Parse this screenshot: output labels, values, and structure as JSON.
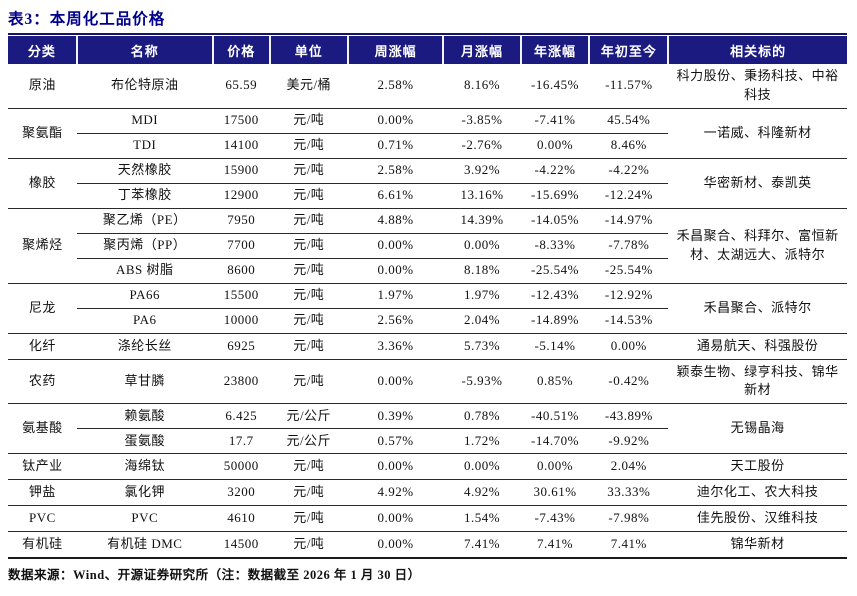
{
  "title": "表3：本周化工品价格",
  "source_note": "数据来源：Wind、开源证券研究所（注：数据截至 2026 年 1 月 30 日）",
  "colors": {
    "header_background_navy": "#1a1a80",
    "title_navy": "#00008b",
    "header_text": "#ffffff",
    "body_text": "#111111",
    "rule_navy": "#14146e"
  },
  "table": {
    "columns": [
      "分类",
      "名称",
      "价格",
      "单位",
      "周涨幅",
      "月涨幅",
      "年涨幅",
      "年初至今",
      "相关标的"
    ],
    "groups": [
      {
        "category": "原油",
        "related": "科力股份、秉扬科技、中裕科技",
        "rows": [
          {
            "name": "布伦特原油",
            "price": "65.59",
            "unit": "美元/桶",
            "week": "2.58%",
            "month": "8.16%",
            "year": "-16.45%",
            "ytd": "-11.57%"
          }
        ]
      },
      {
        "category": "聚氨酯",
        "related": "一诺威、科隆新材",
        "rows": [
          {
            "name": "MDI",
            "price": "17500",
            "unit": "元/吨",
            "week": "0.00%",
            "month": "-3.85%",
            "year": "-7.41%",
            "ytd": "45.54%"
          },
          {
            "name": "TDI",
            "price": "14100",
            "unit": "元/吨",
            "week": "0.71%",
            "month": "-2.76%",
            "year": "0.00%",
            "ytd": "8.46%"
          }
        ]
      },
      {
        "category": "橡胶",
        "related": "华密新材、泰凯英",
        "rows": [
          {
            "name": "天然橡胶",
            "price": "15900",
            "unit": "元/吨",
            "week": "2.58%",
            "month": "3.92%",
            "year": "-4.22%",
            "ytd": "-4.22%"
          },
          {
            "name": "丁苯橡胶",
            "price": "12900",
            "unit": "元/吨",
            "week": "6.61%",
            "month": "13.16%",
            "year": "-15.69%",
            "ytd": "-12.24%"
          }
        ]
      },
      {
        "category": "聚烯烃",
        "related": "禾昌聚合、科拜尔、富恒新材、太湖远大、派特尔",
        "rows": [
          {
            "name": "聚乙烯（PE）",
            "price": "7950",
            "unit": "元/吨",
            "week": "4.88%",
            "month": "14.39%",
            "year": "-14.05%",
            "ytd": "-14.97%"
          },
          {
            "name": "聚丙烯（PP）",
            "price": "7700",
            "unit": "元/吨",
            "week": "0.00%",
            "month": "0.00%",
            "year": "-8.33%",
            "ytd": "-7.78%"
          },
          {
            "name": "ABS 树脂",
            "price": "8600",
            "unit": "元/吨",
            "week": "0.00%",
            "month": "8.18%",
            "year": "-25.54%",
            "ytd": "-25.54%"
          }
        ]
      },
      {
        "category": "尼龙",
        "related": "禾昌聚合、派特尔",
        "rows": [
          {
            "name": "PA66",
            "price": "15500",
            "unit": "元/吨",
            "week": "1.97%",
            "month": "1.97%",
            "year": "-12.43%",
            "ytd": "-12.92%"
          },
          {
            "name": "PA6",
            "price": "10000",
            "unit": "元/吨",
            "week": "2.56%",
            "month": "2.04%",
            "year": "-14.89%",
            "ytd": "-14.53%"
          }
        ]
      },
      {
        "category": "化纤",
        "related": "通易航天、科强股份",
        "rows": [
          {
            "name": "涤纶长丝",
            "price": "6925",
            "unit": "元/吨",
            "week": "3.36%",
            "month": "5.73%",
            "year": "-5.14%",
            "ytd": "0.00%"
          }
        ]
      },
      {
        "category": "农药",
        "related": "颖泰生物、绿亨科技、锦华新材",
        "rows": [
          {
            "name": "草甘膦",
            "price": "23800",
            "unit": "元/吨",
            "week": "0.00%",
            "month": "-5.93%",
            "year": "0.85%",
            "ytd": "-0.42%"
          }
        ]
      },
      {
        "category": "氨基酸",
        "related": "无锡晶海",
        "rows": [
          {
            "name": "赖氨酸",
            "price": "6.425",
            "unit": "元/公斤",
            "week": "0.39%",
            "month": "0.78%",
            "year": "-40.51%",
            "ytd": "-43.89%"
          },
          {
            "name": "蛋氨酸",
            "price": "17.7",
            "unit": "元/公斤",
            "week": "0.57%",
            "month": "1.72%",
            "year": "-14.70%",
            "ytd": "-9.92%"
          }
        ]
      },
      {
        "category": "钛产业",
        "related": "天工股份",
        "rows": [
          {
            "name": "海绵钛",
            "price": "50000",
            "unit": "元/吨",
            "week": "0.00%",
            "month": "0.00%",
            "year": "0.00%",
            "ytd": "2.04%"
          }
        ]
      },
      {
        "category": "钾盐",
        "related": "迪尔化工、农大科技",
        "rows": [
          {
            "name": "氯化钾",
            "price": "3200",
            "unit": "元/吨",
            "week": "4.92%",
            "month": "4.92%",
            "year": "30.61%",
            "ytd": "33.33%"
          }
        ]
      },
      {
        "category": "PVC",
        "related": "佳先股份、汉维科技",
        "rows": [
          {
            "name": "PVC",
            "price": "4610",
            "unit": "元/吨",
            "week": "0.00%",
            "month": "1.54%",
            "year": "-7.43%",
            "ytd": "-7.98%"
          }
        ]
      },
      {
        "category": "有机硅",
        "related": "锦华新材",
        "rows": [
          {
            "name": "有机硅 DMC",
            "price": "14500",
            "unit": "元/吨",
            "week": "0.00%",
            "month": "7.41%",
            "year": "7.41%",
            "ytd": "7.41%"
          }
        ]
      }
    ]
  }
}
